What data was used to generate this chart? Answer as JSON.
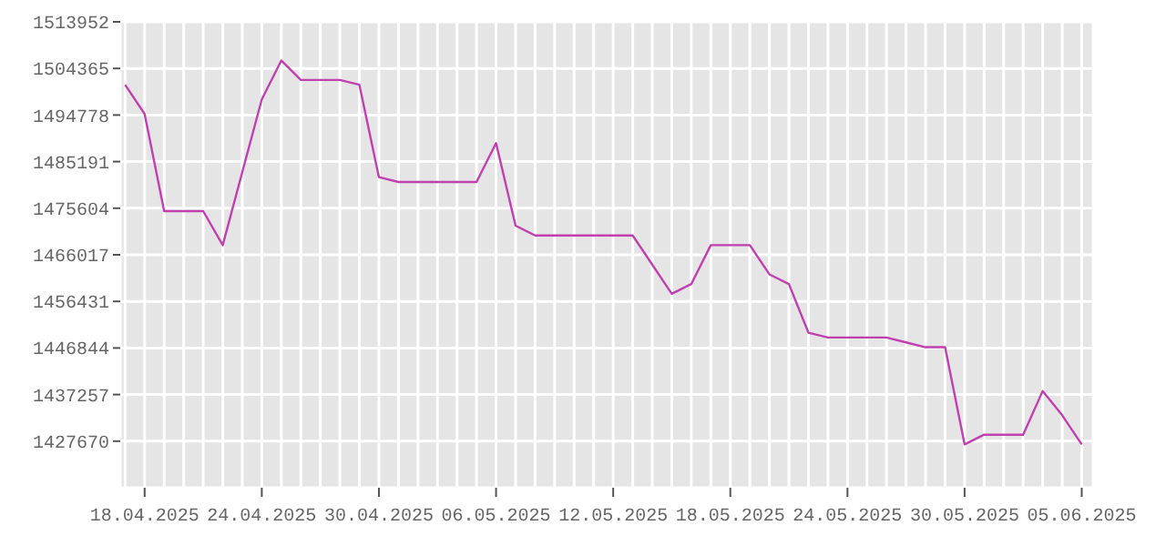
{
  "chart_data": {
    "type": "line",
    "x": [
      "2025-04-17",
      "2025-04-18",
      "2025-04-19",
      "2025-04-20",
      "2025-04-21",
      "2025-04-22",
      "2025-04-23",
      "2025-04-24",
      "2025-04-25",
      "2025-04-26",
      "2025-04-27",
      "2025-04-28",
      "2025-04-29",
      "2025-04-30",
      "2025-05-01",
      "2025-05-02",
      "2025-05-03",
      "2025-05-04",
      "2025-05-05",
      "2025-05-06",
      "2025-05-07",
      "2025-05-08",
      "2025-05-09",
      "2025-05-10",
      "2025-05-11",
      "2025-05-12",
      "2025-05-13",
      "2025-05-14",
      "2025-05-15",
      "2025-05-16",
      "2025-05-17",
      "2025-05-18",
      "2025-05-19",
      "2025-05-20",
      "2025-05-21",
      "2025-05-22",
      "2025-05-23",
      "2025-05-24",
      "2025-05-25",
      "2025-05-26",
      "2025-05-27",
      "2025-05-28",
      "2025-05-29",
      "2025-05-30",
      "2025-05-31",
      "2025-06-01",
      "2025-06-02",
      "2025-06-03",
      "2025-06-04",
      "2025-06-05"
    ],
    "series": [
      {
        "color": "#c040b0",
        "values": [
          1501000,
          1495000,
          1475000,
          1475000,
          1475000,
          1468000,
          1483000,
          1498000,
          1506000,
          1502000,
          1502000,
          1502000,
          1501000,
          1482000,
          1481000,
          1481000,
          1481000,
          1481000,
          1481000,
          1489000,
          1472000,
          1470000,
          1470000,
          1470000,
          1470000,
          1470000,
          1470000,
          1464000,
          1458000,
          1460000,
          1468000,
          1468000,
          1468000,
          1462000,
          1460000,
          1450000,
          1449000,
          1449000,
          1449000,
          1449000,
          1448000,
          1447000,
          1447000,
          1427000,
          1429000,
          1429000,
          1429000,
          1438000,
          1433000,
          1427000
        ]
      }
    ],
    "xlim": [
      "2025-04-16T18:00",
      "2025-06-05T14:00"
    ],
    "xticks": [
      {
        "value": "2025-04-17",
        "label": null
      },
      {
        "value": "2025-04-18",
        "label": "18.04.2025"
      },
      {
        "value": "2025-04-19",
        "label": null
      },
      {
        "value": "2025-04-20",
        "label": null
      },
      {
        "value": "2025-04-21",
        "label": null
      },
      {
        "value": "2025-04-22",
        "label": null
      },
      {
        "value": "2025-04-23",
        "label": null
      },
      {
        "value": "2025-04-24",
        "label": "24.04.2025"
      },
      {
        "value": "2025-04-25",
        "label": null
      },
      {
        "value": "2025-04-26",
        "label": null
      },
      {
        "value": "2025-04-27",
        "label": null
      },
      {
        "value": "2025-04-28",
        "label": null
      },
      {
        "value": "2025-04-29",
        "label": null
      },
      {
        "value": "2025-04-30",
        "label": "30.04.2025"
      },
      {
        "value": "2025-05-01",
        "label": null
      },
      {
        "value": "2025-05-02",
        "label": null
      },
      {
        "value": "2025-05-03",
        "label": null
      },
      {
        "value": "2025-05-04",
        "label": null
      },
      {
        "value": "2025-05-05",
        "label": null
      },
      {
        "value": "2025-05-06",
        "label": "06.05.2025"
      },
      {
        "value": "2025-05-07",
        "label": null
      },
      {
        "value": "2025-05-08",
        "label": null
      },
      {
        "value": "2025-05-09",
        "label": null
      },
      {
        "value": "2025-05-10",
        "label": null
      },
      {
        "value": "2025-05-11",
        "label": null
      },
      {
        "value": "2025-05-12",
        "label": "12.05.2025"
      },
      {
        "value": "2025-05-13",
        "label": null
      },
      {
        "value": "2025-05-14",
        "label": null
      },
      {
        "value": "2025-05-15",
        "label": null
      },
      {
        "value": "2025-05-16",
        "label": null
      },
      {
        "value": "2025-05-17",
        "label": null
      },
      {
        "value": "2025-05-18",
        "label": "18.05.2025"
      },
      {
        "value": "2025-05-19",
        "label": null
      },
      {
        "value": "2025-05-20",
        "label": null
      },
      {
        "value": "2025-05-21",
        "label": null
      },
      {
        "value": "2025-05-22",
        "label": null
      },
      {
        "value": "2025-05-23",
        "label": null
      },
      {
        "value": "2025-05-24",
        "label": "24.05.2025"
      },
      {
        "value": "2025-05-25",
        "label": null
      },
      {
        "value": "2025-05-26",
        "label": null
      },
      {
        "value": "2025-05-27",
        "label": null
      },
      {
        "value": "2025-05-28",
        "label": null
      },
      {
        "value": "2025-05-29",
        "label": null
      },
      {
        "value": "2025-05-30",
        "label": "30.05.2025"
      },
      {
        "value": "2025-05-31",
        "label": null
      },
      {
        "value": "2025-06-01",
        "label": null
      },
      {
        "value": "2025-06-02",
        "label": null
      },
      {
        "value": "2025-06-03",
        "label": null
      },
      {
        "value": "2025-06-04",
        "label": null
      },
      {
        "value": "2025-06-05",
        "label": "05.06.2025"
      }
    ],
    "ylim": [
      1418083,
      1513952
    ],
    "yticks": [
      1427670,
      1437257,
      1446844,
      1456431,
      1466017,
      1475604,
      1485191,
      1494778,
      1504365,
      1513952
    ],
    "grid": true,
    "legend": false,
    "marker": "none",
    "line_style": "solid"
  }
}
